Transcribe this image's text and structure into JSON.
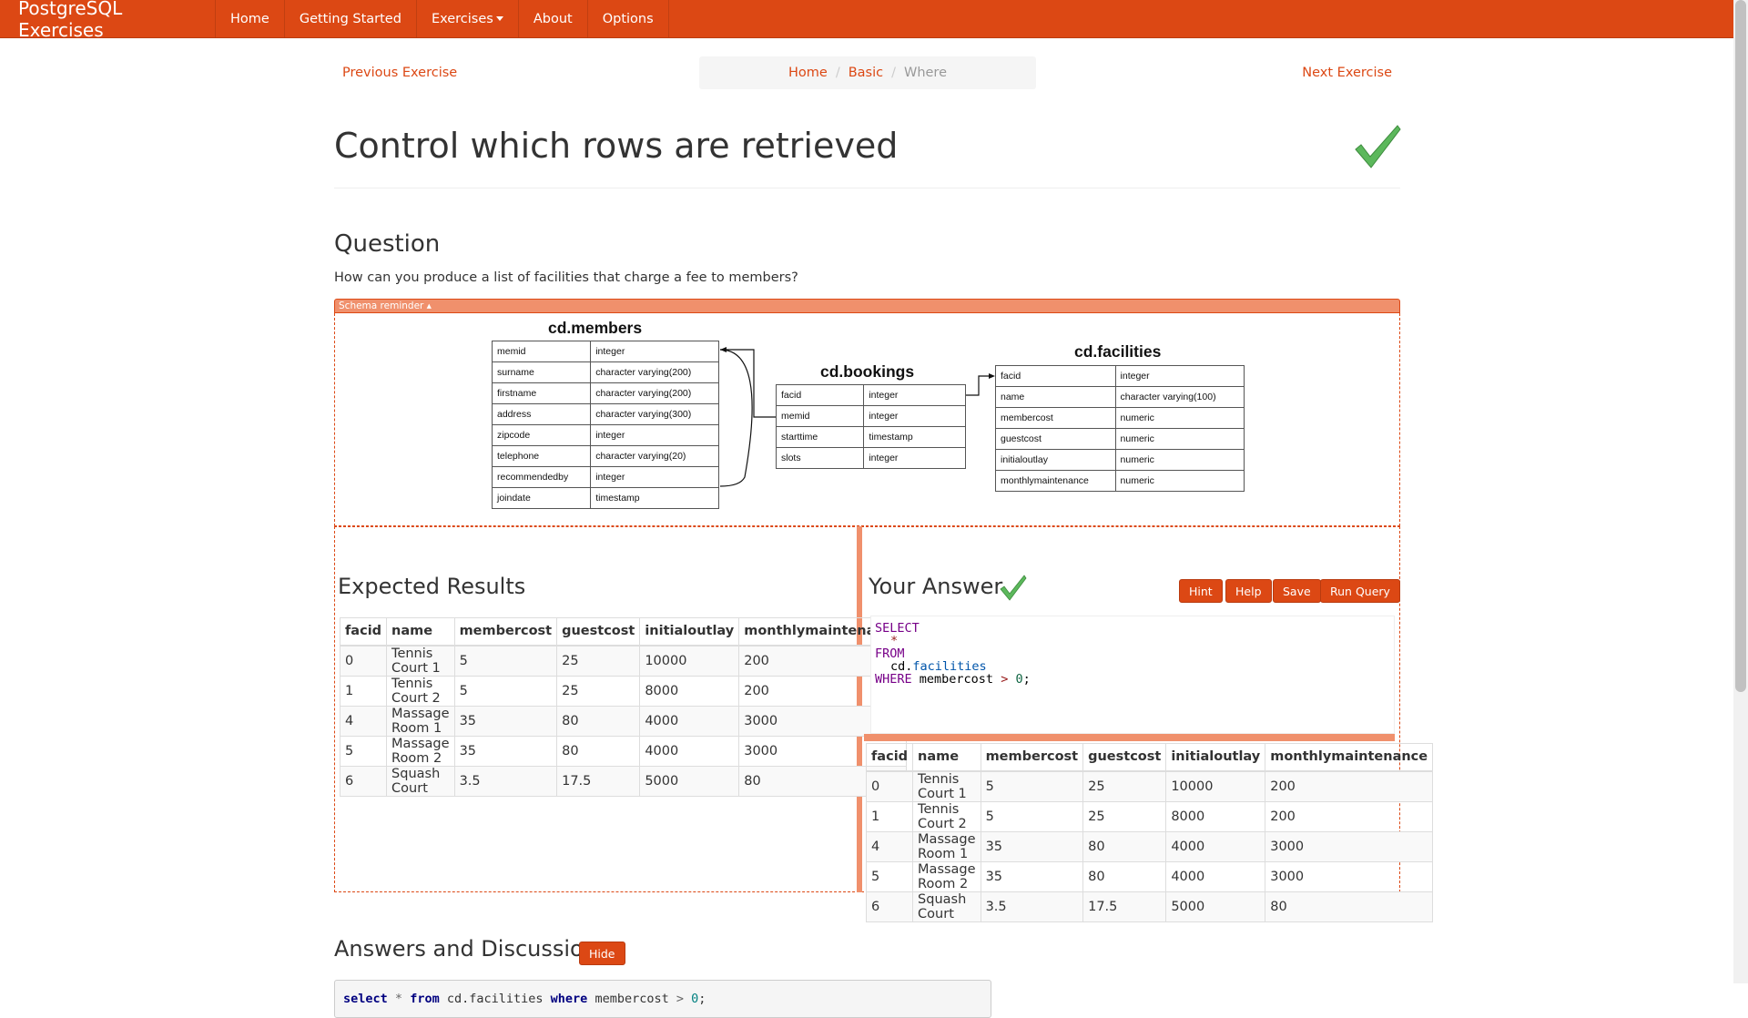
{
  "nav": {
    "brand": "PostgreSQL Exercises",
    "items": [
      "Home",
      "Getting Started",
      "Exercises",
      "About",
      "Options"
    ]
  },
  "pager": {
    "prev": "Previous Exercise",
    "next": "Next Exercise"
  },
  "breadcrumb": {
    "home": "Home",
    "section": "Basic",
    "current": "Where"
  },
  "page": {
    "title": "Control which rows are retrieved",
    "question_heading": "Question",
    "question": "How can you produce a list of facilities that charge a fee to members?"
  },
  "schema": {
    "toggle_label": "Schema reminder ▴",
    "members": {
      "name": "cd.members",
      "rows": [
        [
          "memid",
          "integer"
        ],
        [
          "surname",
          "character varying(200)"
        ],
        [
          "firstname",
          "character varying(200)"
        ],
        [
          "address",
          "character varying(300)"
        ],
        [
          "zipcode",
          "integer"
        ],
        [
          "telephone",
          "character varying(20)"
        ],
        [
          "recommendedby",
          "integer"
        ],
        [
          "joindate",
          "timestamp"
        ]
      ]
    },
    "bookings": {
      "name": "cd.bookings",
      "rows": [
        [
          "facid",
          "integer"
        ],
        [
          "memid",
          "integer"
        ],
        [
          "starttime",
          "timestamp"
        ],
        [
          "slots",
          "integer"
        ]
      ]
    },
    "facilities": {
      "name": "cd.facilities",
      "rows": [
        [
          "facid",
          "integer"
        ],
        [
          "name",
          "character varying(100)"
        ],
        [
          "membercost",
          "numeric"
        ],
        [
          "guestcost",
          "numeric"
        ],
        [
          "initialoutlay",
          "numeric"
        ],
        [
          "monthlymaintenance",
          "numeric"
        ]
      ]
    }
  },
  "expected": {
    "heading": "Expected Results",
    "columns": [
      "facid",
      "name",
      "membercost",
      "guestcost",
      "initialoutlay",
      "monthlymaintenance"
    ],
    "rows": [
      [
        "0",
        "Tennis Court 1",
        "5",
        "25",
        "10000",
        "200"
      ],
      [
        "1",
        "Tennis Court 2",
        "5",
        "25",
        "8000",
        "200"
      ],
      [
        "4",
        "Massage Room 1",
        "35",
        "80",
        "4000",
        "3000"
      ],
      [
        "5",
        "Massage Room 2",
        "35",
        "80",
        "4000",
        "3000"
      ],
      [
        "6",
        "Squash Court",
        "3.5",
        "17.5",
        "5000",
        "80"
      ]
    ]
  },
  "answer": {
    "heading": "Your Answer",
    "buttons": {
      "hint": "Hint",
      "help": "Help",
      "save": "Save",
      "run": "Run Query"
    },
    "code": {
      "select": "SELECT",
      "star": "*",
      "from": "FROM",
      "schema": "cd.",
      "table": "facilities",
      "where": "WHERE",
      "col": "membercost",
      "op": ">",
      "val": "0",
      "end": ";"
    },
    "columns": [
      "facid",
      "name",
      "membercost",
      "guestcost",
      "initialoutlay",
      "monthlymaintenance"
    ],
    "rows": [
      [
        "0",
        "Tennis Court 1",
        "5",
        "25",
        "10000",
        "200"
      ],
      [
        "1",
        "Tennis Court 2",
        "5",
        "25",
        "8000",
        "200"
      ],
      [
        "4",
        "Massage Room 1",
        "35",
        "80",
        "4000",
        "3000"
      ],
      [
        "5",
        "Massage Room 2",
        "35",
        "80",
        "4000",
        "3000"
      ],
      [
        "6",
        "Squash Court",
        "3.5",
        "17.5",
        "5000",
        "80"
      ]
    ]
  },
  "discussion": {
    "heading": "Answers and Discussion",
    "hide_label": "Hide",
    "code": {
      "k1": "select",
      "star": "*",
      "k2": "from",
      "table": "cd.facilities",
      "k3": "where",
      "col": "membercost",
      "op": ">",
      "val": "0",
      "end": ";"
    }
  },
  "colors": {
    "accent": "#dc4814",
    "accent_light": "#f0906c",
    "check": "#5cb85c"
  }
}
